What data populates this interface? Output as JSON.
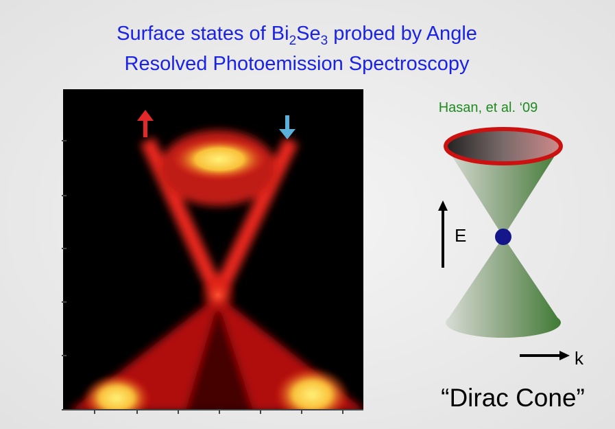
{
  "title": {
    "line1": {
      "before": "Surface states of Bi",
      "sub1": "2",
      "mid": "Se",
      "sub2": "3",
      "after": " probed by Angle"
    },
    "line2": "Resolved Photoemission Spectroscopy"
  },
  "citation": "Hasan, et al. ‘09",
  "cone": {
    "energy_label": "E",
    "momentum_label": "k",
    "caption": "“Dirac Cone”"
  }
}
